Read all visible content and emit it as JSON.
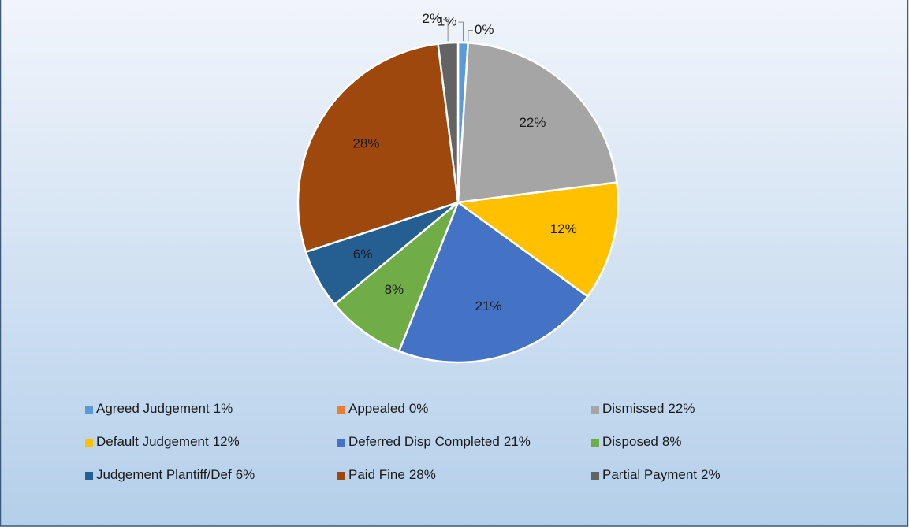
{
  "chart_data": {
    "type": "pie",
    "categories": [
      "Agreed Judgement",
      "Appealed",
      "Dismissed",
      "Default Judgement",
      "Deferred Disp Completed",
      "Disposed",
      "Judgement Plantiff/Def",
      "Paid Fine",
      "Partial Payment"
    ],
    "values": [
      1,
      0,
      22,
      12,
      21,
      8,
      6,
      28,
      2
    ],
    "value_labels": [
      "1%",
      "0%",
      "22%",
      "12%",
      "21%",
      "8%",
      "6%",
      "28%",
      "2%"
    ],
    "colors": [
      "#5b9bd5",
      "#ed7d31",
      "#a5a5a5",
      "#ffc000",
      "#4472c4",
      "#70ad47",
      "#255e91",
      "#9e480e",
      "#636363"
    ],
    "legend": "bottom"
  }
}
